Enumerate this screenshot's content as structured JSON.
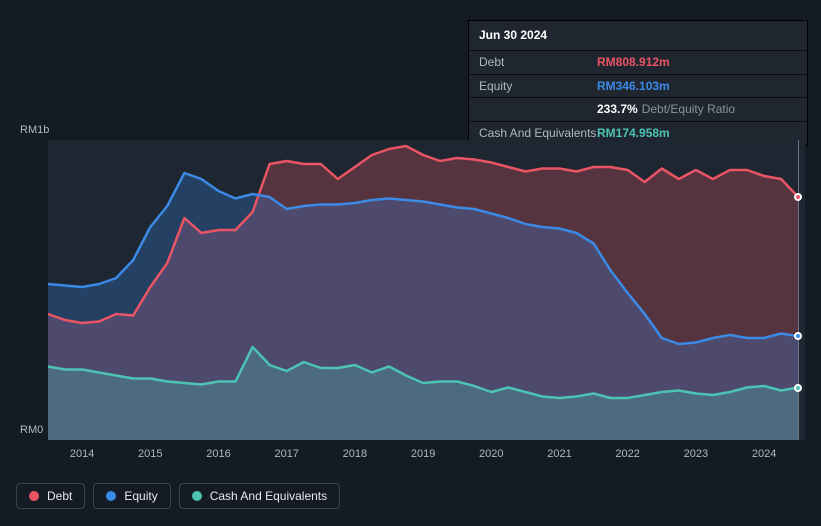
{
  "chart": {
    "type": "area",
    "background_color": "#151b24",
    "plot_background_color": "#1d2631",
    "font_family": "Arial, sans-serif",
    "x": {
      "start": 2013.5,
      "end": 2024.6,
      "ticks": [
        2014,
        2015,
        2016,
        2017,
        2018,
        2019,
        2020,
        2021,
        2022,
        2023,
        2024
      ],
      "tick_labels": [
        "2014",
        "2015",
        "2016",
        "2017",
        "2018",
        "2019",
        "2020",
        "2021",
        "2022",
        "2023",
        "2024"
      ],
      "label_color": "#b0b8c2",
      "label_fontsize": 11
    },
    "y": {
      "min": 0,
      "max": 1000,
      "tick_values": [
        0,
        1000
      ],
      "tick_labels": [
        "RM0",
        "RM1b"
      ],
      "unit": "million RM",
      "label_color": "#b0b8c2",
      "label_fontsize": 11
    },
    "series": {
      "debt": {
        "label": "Debt",
        "line_color": "#e95565",
        "line_width": 2.5,
        "fill_color": "#e95565",
        "fill_opacity": 0.28,
        "points": [
          [
            2013.5,
            420
          ],
          [
            2013.75,
            400
          ],
          [
            2014.0,
            390
          ],
          [
            2014.25,
            395
          ],
          [
            2014.5,
            420
          ],
          [
            2014.75,
            415
          ],
          [
            2015.0,
            510
          ],
          [
            2015.25,
            590
          ],
          [
            2015.5,
            740
          ],
          [
            2015.75,
            690
          ],
          [
            2016.0,
            700
          ],
          [
            2016.25,
            700
          ],
          [
            2016.5,
            760
          ],
          [
            2016.75,
            920
          ],
          [
            2017.0,
            930
          ],
          [
            2017.25,
            920
          ],
          [
            2017.5,
            920
          ],
          [
            2017.75,
            870
          ],
          [
            2018.0,
            910
          ],
          [
            2018.25,
            950
          ],
          [
            2018.5,
            970
          ],
          [
            2018.75,
            980
          ],
          [
            2019.0,
            950
          ],
          [
            2019.25,
            930
          ],
          [
            2019.5,
            940
          ],
          [
            2019.75,
            935
          ],
          [
            2020.0,
            925
          ],
          [
            2020.25,
            910
          ],
          [
            2020.5,
            895
          ],
          [
            2020.75,
            905
          ],
          [
            2021.0,
            905
          ],
          [
            2021.25,
            895
          ],
          [
            2021.5,
            910
          ],
          [
            2021.75,
            910
          ],
          [
            2022.0,
            900
          ],
          [
            2022.25,
            860
          ],
          [
            2022.5,
            905
          ],
          [
            2022.75,
            870
          ],
          [
            2023.0,
            900
          ],
          [
            2023.25,
            870
          ],
          [
            2023.5,
            900
          ],
          [
            2023.75,
            900
          ],
          [
            2024.0,
            880
          ],
          [
            2024.25,
            870
          ],
          [
            2024.5,
            810
          ]
        ]
      },
      "equity": {
        "label": "Equity",
        "line_color": "#3b8ae6",
        "line_width": 2.5,
        "fill_color": "#3b8ae6",
        "fill_opacity": 0.28,
        "points": [
          [
            2013.5,
            520
          ],
          [
            2013.75,
            515
          ],
          [
            2014.0,
            510
          ],
          [
            2014.25,
            520
          ],
          [
            2014.5,
            540
          ],
          [
            2014.75,
            600
          ],
          [
            2015.0,
            710
          ],
          [
            2015.25,
            780
          ],
          [
            2015.5,
            890
          ],
          [
            2015.75,
            870
          ],
          [
            2016.0,
            830
          ],
          [
            2016.25,
            805
          ],
          [
            2016.5,
            820
          ],
          [
            2016.75,
            810
          ],
          [
            2017.0,
            770
          ],
          [
            2017.25,
            780
          ],
          [
            2017.5,
            785
          ],
          [
            2017.75,
            785
          ],
          [
            2018.0,
            790
          ],
          [
            2018.25,
            800
          ],
          [
            2018.5,
            805
          ],
          [
            2018.75,
            800
          ],
          [
            2019.0,
            795
          ],
          [
            2019.25,
            785
          ],
          [
            2019.5,
            775
          ],
          [
            2019.75,
            770
          ],
          [
            2020.0,
            755
          ],
          [
            2020.25,
            740
          ],
          [
            2020.5,
            720
          ],
          [
            2020.75,
            710
          ],
          [
            2021.0,
            705
          ],
          [
            2021.25,
            690
          ],
          [
            2021.5,
            655
          ],
          [
            2021.75,
            565
          ],
          [
            2022.0,
            490
          ],
          [
            2022.25,
            420
          ],
          [
            2022.5,
            340
          ],
          [
            2022.75,
            320
          ],
          [
            2023.0,
            325
          ],
          [
            2023.25,
            340
          ],
          [
            2023.5,
            350
          ],
          [
            2023.75,
            340
          ],
          [
            2024.0,
            340
          ],
          [
            2024.25,
            355
          ],
          [
            2024.5,
            346
          ]
        ]
      },
      "cash": {
        "label": "Cash And Equivalents",
        "line_color": "#4cc3b3",
        "line_width": 2.5,
        "fill_color": "#4cc3b3",
        "fill_opacity": 0.28,
        "points": [
          [
            2013.5,
            245
          ],
          [
            2013.75,
            235
          ],
          [
            2014.0,
            235
          ],
          [
            2014.25,
            225
          ],
          [
            2014.5,
            215
          ],
          [
            2014.75,
            205
          ],
          [
            2015.0,
            205
          ],
          [
            2015.25,
            195
          ],
          [
            2015.5,
            190
          ],
          [
            2015.75,
            185
          ],
          [
            2016.0,
            195
          ],
          [
            2016.25,
            195
          ],
          [
            2016.5,
            310
          ],
          [
            2016.75,
            250
          ],
          [
            2017.0,
            230
          ],
          [
            2017.25,
            260
          ],
          [
            2017.5,
            240
          ],
          [
            2017.75,
            240
          ],
          [
            2018.0,
            250
          ],
          [
            2018.25,
            225
          ],
          [
            2018.5,
            245
          ],
          [
            2018.75,
            215
          ],
          [
            2019.0,
            190
          ],
          [
            2019.25,
            195
          ],
          [
            2019.5,
            195
          ],
          [
            2019.75,
            180
          ],
          [
            2020.0,
            160
          ],
          [
            2020.25,
            175
          ],
          [
            2020.5,
            160
          ],
          [
            2020.75,
            145
          ],
          [
            2021.0,
            140
          ],
          [
            2021.25,
            145
          ],
          [
            2021.5,
            155
          ],
          [
            2021.75,
            140
          ],
          [
            2022.0,
            140
          ],
          [
            2022.25,
            150
          ],
          [
            2022.5,
            160
          ],
          [
            2022.75,
            165
          ],
          [
            2023.0,
            155
          ],
          [
            2023.25,
            150
          ],
          [
            2023.5,
            160
          ],
          [
            2023.75,
            175
          ],
          [
            2024.0,
            180
          ],
          [
            2024.25,
            165
          ],
          [
            2024.5,
            175
          ]
        ]
      }
    },
    "cursor": {
      "x": 2024.5,
      "dots": [
        {
          "series": "debt",
          "y": 810,
          "color": "#e95565"
        },
        {
          "series": "equity",
          "y": 346,
          "color": "#3b8ae6"
        },
        {
          "series": "cash",
          "y": 175,
          "color": "#4cc3b3"
        }
      ],
      "line_color": "#6b7280"
    }
  },
  "infobox": {
    "date": "Jun 30 2024",
    "rows": {
      "debt": {
        "label": "Debt",
        "value": "RM808.912m",
        "color": "#e95565"
      },
      "equity": {
        "label": "Equity",
        "value": "RM346.103m",
        "color": "#3b8ae6"
      },
      "ratio": {
        "pct": "233.7%",
        "label": "Debt/Equity Ratio"
      },
      "cash": {
        "label": "Cash And Equivalents",
        "value": "RM174.958m",
        "color": "#4cc3b3"
      }
    },
    "background_color": "#1f2630",
    "border_color": "#000000",
    "fontsize": 12
  },
  "legend": {
    "items": [
      {
        "key": "debt",
        "label": "Debt",
        "color": "#e95565"
      },
      {
        "key": "equity",
        "label": "Equity",
        "color": "#3b8ae6"
      },
      {
        "key": "cash",
        "label": "Cash And Equivalents",
        "color": "#4cc3b3"
      }
    ],
    "border_color": "#3a4450",
    "text_color": "#e6e9ed",
    "fontsize": 12
  }
}
